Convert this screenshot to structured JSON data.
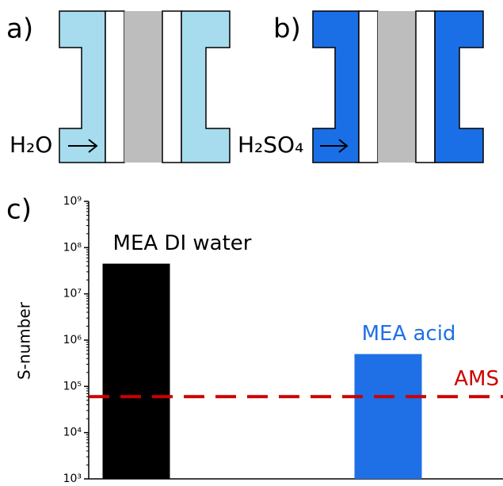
{
  "panels": [
    {
      "label": "a)",
      "inlet": "H₂O"
    },
    {
      "label": "b)",
      "inlet": "H₂SO₄"
    }
  ],
  "chart_data": {
    "type": "bar",
    "panel_label": "c)",
    "ylabel": "S-number",
    "categories": [
      "MEA DI water",
      "MEA acid"
    ],
    "values": [
      45000000,
      500000
    ],
    "colors": [
      "#000000",
      "#1f70e6"
    ],
    "log_scale": true,
    "ylim": [
      1000,
      1000000000
    ],
    "yticks": [
      {
        "value": 1000,
        "label": "10³"
      },
      {
        "value": 10000,
        "label": "10⁴"
      },
      {
        "value": 100000,
        "label": "10⁵"
      },
      {
        "value": 1000000,
        "label": "10⁶"
      },
      {
        "value": 10000000,
        "label": "10⁷"
      },
      {
        "value": 100000000,
        "label": "10⁸"
      },
      {
        "value": 1000000000,
        "label": "10⁹"
      }
    ],
    "reference_line": {
      "value": 60000,
      "label": "AMS",
      "color": "#cc0000"
    }
  }
}
